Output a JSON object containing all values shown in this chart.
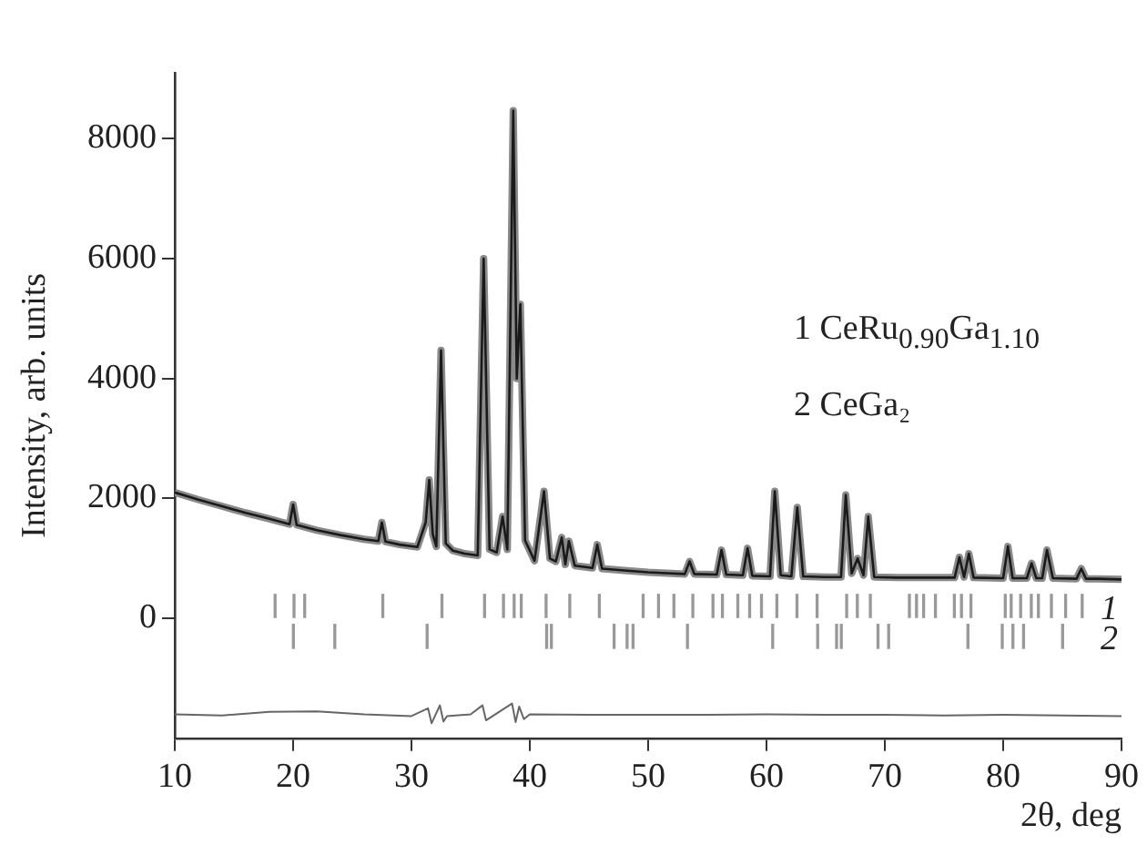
{
  "chart_data": {
    "type": "line",
    "xlabel": "2θ, deg",
    "ylabel": "Intensity, arb. units",
    "xlim": [
      10,
      90
    ],
    "xticks": [
      10,
      20,
      30,
      40,
      50,
      60,
      70,
      80,
      90
    ],
    "ylim": [
      -2000,
      9100
    ],
    "yticks": [
      0,
      2000,
      4000,
      6000,
      8000
    ],
    "grid": false,
    "x": [
      10,
      12,
      14,
      16,
      18,
      19.7,
      20,
      20.3,
      22,
      24,
      26,
      27.2,
      27.5,
      27.8,
      29,
      30.5,
      31.2,
      31.5,
      31.8,
      32.1,
      32.5,
      32.9,
      33.5,
      34.5,
      35.6,
      36.1,
      36.6,
      37.2,
      37.7,
      38.1,
      38.6,
      38.9,
      39.2,
      39.6,
      40.4,
      41.2,
      41.7,
      42.2,
      42.7,
      43.0,
      43.3,
      43.8,
      45.3,
      45.7,
      46.1,
      48,
      50,
      52,
      53.1,
      53.5,
      53.9,
      55.8,
      56.2,
      56.6,
      58,
      58.4,
      58.8,
      60.3,
      60.7,
      61.2,
      62.1,
      62.6,
      63.1,
      65,
      66.3,
      66.7,
      67.2,
      67.7,
      68.2,
      68.6,
      69.1,
      71,
      74,
      75.9,
      76.3,
      76.7,
      77.1,
      77.5,
      80,
      80.4,
      80.8,
      82.0,
      82.4,
      82.8,
      83.3,
      83.7,
      84.2,
      86.2,
      86.6,
      87,
      88,
      90
    ],
    "series": [
      {
        "color": "#8a8a8a",
        "values": [
          2100,
          1980,
          1870,
          1760,
          1660,
          1570,
          1900,
          1560,
          1470,
          1390,
          1320,
          1290,
          1600,
          1280,
          1230,
          1190,
          1600,
          2310,
          1400,
          1200,
          4470,
          1250,
          1130,
          1080,
          1050,
          6000,
          1150,
          1100,
          1700,
          1150,
          8470,
          4000,
          5240,
          1300,
          960,
          2120,
          1000,
          950,
          1350,
          900,
          1290,
          880,
          840,
          1230,
          830,
          800,
          770,
          750,
          740,
          950,
          740,
          730,
          1140,
          730,
          720,
          1170,
          710,
          700,
          2120,
          720,
          700,
          1850,
          700,
          690,
          690,
          2060,
          750,
          1000,
          720,
          1700,
          690,
          680,
          680,
          680,
          1020,
          690,
          1080,
          680,
          670,
          1200,
          670,
          670,
          920,
          670,
          670,
          1140,
          670,
          660,
          830,
          660,
          660,
          650
        ]
      },
      {
        "color": "#1a1a1a",
        "values": [
          2100,
          1980,
          1870,
          1760,
          1660,
          1570,
          1900,
          1560,
          1470,
          1390,
          1320,
          1290,
          1600,
          1280,
          1230,
          1190,
          1600,
          2310,
          1400,
          1200,
          4470,
          1250,
          1130,
          1080,
          1050,
          6000,
          1150,
          1100,
          1700,
          1150,
          8470,
          4000,
          5240,
          1300,
          960,
          2120,
          1000,
          950,
          1350,
          900,
          1290,
          880,
          840,
          1230,
          830,
          800,
          770,
          750,
          740,
          950,
          740,
          730,
          1140,
          730,
          720,
          1170,
          710,
          700,
          2120,
          720,
          700,
          1850,
          700,
          690,
          690,
          2060,
          750,
          1000,
          720,
          1700,
          690,
          680,
          680,
          680,
          1020,
          690,
          1080,
          680,
          670,
          1200,
          670,
          670,
          920,
          670,
          670,
          1140,
          670,
          660,
          830,
          660,
          660,
          650
        ]
      },
      {
        "color": "#666666",
        "x": [
          10,
          14,
          18,
          22,
          26,
          30,
          31.4,
          31.7,
          32.4,
          32.7,
          33,
          35,
          36,
          36.3,
          38.5,
          38.8,
          39.1,
          39.5,
          40,
          45,
          50,
          55,
          60,
          65,
          70,
          75,
          80,
          85,
          90
        ],
        "values": [
          -1600,
          -1620,
          -1560,
          -1550,
          -1600,
          -1630,
          -1500,
          -1750,
          -1450,
          -1720,
          -1630,
          -1600,
          -1450,
          -1700,
          -1420,
          -1730,
          -1470,
          -1680,
          -1600,
          -1610,
          -1610,
          -1610,
          -1600,
          -1610,
          -1610,
          -1620,
          -1610,
          -1620,
          -1630
        ]
      },
      {
        "type": "bar",
        "name": "1",
        "color": "#999999",
        "x": [
          18.4,
          20.0,
          20.9,
          27.5,
          32.5,
          36.1,
          37.7,
          38.6,
          39.2,
          41.3,
          43.3,
          45.8,
          49.5,
          50.8,
          52.1,
          53.7,
          55.4,
          56.2,
          57.5,
          58.5,
          59.5,
          60.8,
          62.5,
          64.2,
          66.7,
          67.6,
          68.7,
          72.0,
          72.6,
          73.2,
          74.2,
          75.8,
          76.4,
          77.2,
          80.1,
          80.6,
          81.4,
          82.3,
          82.9,
          84.0,
          85.2,
          86.6
        ],
        "values": [
          400,
          400,
          400,
          400,
          400,
          400,
          400,
          400,
          400,
          400,
          400,
          400,
          400,
          400,
          400,
          400,
          400,
          400,
          400,
          400,
          400,
          400,
          400,
          400,
          400,
          400,
          400,
          400,
          400,
          400,
          400,
          400,
          400,
          400,
          400,
          400,
          400,
          400,
          400,
          400,
          400,
          400
        ],
        "base": [
          0,
          0,
          0,
          0,
          0,
          0,
          0,
          0,
          0,
          0,
          0,
          0,
          0,
          0,
          0,
          0,
          0,
          0,
          0,
          0,
          0,
          0,
          0,
          0,
          0,
          0,
          0,
          0,
          0,
          0,
          0,
          0,
          0,
          0,
          0,
          0,
          0,
          0,
          0,
          0,
          0,
          0
        ]
      },
      {
        "type": "bar",
        "name": "2",
        "color": "#999999",
        "x": [
          20.1,
          23.6,
          31.4,
          41.5,
          41.9,
          47.2,
          48.3,
          48.8,
          53.4,
          60.6,
          64.4,
          66.0,
          66.4,
          69.5,
          70.4,
          77.1,
          80.0,
          80.9,
          81.8,
          85.1
        ],
        "values": [
          400,
          400,
          400,
          400,
          400,
          400,
          400,
          400,
          400,
          400,
          400,
          400,
          400,
          400,
          400,
          400,
          400,
          400,
          400,
          400
        ],
        "base": [
          -500,
          -500,
          -500,
          -500,
          -500,
          -500,
          -500,
          -500,
          -500,
          -500,
          -500,
          -500,
          -500,
          -500,
          -500,
          -500,
          -500,
          -500,
          -500,
          -500
        ]
      }
    ],
    "annotations": [
      "1 CeRu$_{0.90}$Ga$_{1.10}$",
      "2 CeGa₂"
    ]
  }
}
